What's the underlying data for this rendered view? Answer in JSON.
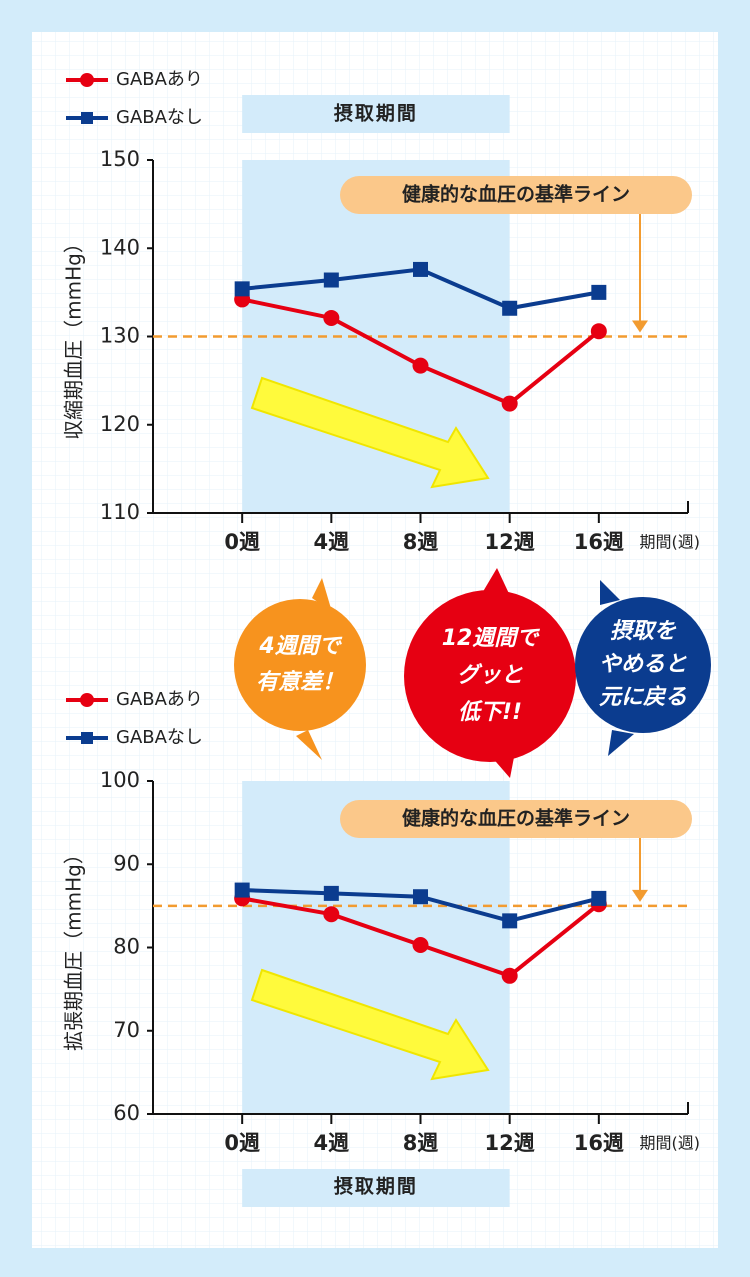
{
  "chart_data": [
    {
      "type": "line",
      "y_label": "収縮期血圧（mmHg）",
      "x_label": "期間(週)",
      "x": [
        0,
        4,
        8,
        12,
        16
      ],
      "xlim": [
        -4,
        20
      ],
      "xticks": [
        {
          "value": 0,
          "label": "0週"
        },
        {
          "value": 4,
          "label": "4週"
        },
        {
          "value": 8,
          "label": "8週"
        },
        {
          "value": 12,
          "label": "12週"
        },
        {
          "value": 16,
          "label": "16週"
        }
      ],
      "ylim": [
        110,
        150
      ],
      "yticks": [
        110,
        120,
        130,
        140,
        150
      ],
      "series": [
        {
          "name": "GABAあり",
          "color": "#e60012",
          "marker": "circle",
          "values": [
            134.2,
            132.1,
            126.7,
            122.4,
            130.6
          ]
        },
        {
          "name": "GABAなし",
          "color": "#0b3c8f",
          "marker": "square",
          "values": [
            135.4,
            136.4,
            137.6,
            133.2,
            135.0
          ]
        }
      ],
      "reference": 130,
      "reference_label": "健康的な血圧の基準ライン",
      "period": [
        0,
        12
      ],
      "period_label": "摂取期間"
    },
    {
      "type": "line",
      "y_label": "拡張期血圧（mmHg）",
      "x_label": "期間(週)",
      "x": [
        0,
        4,
        8,
        12,
        16
      ],
      "xlim": [
        -4,
        20
      ],
      "xticks": [
        {
          "value": 0,
          "label": "0週"
        },
        {
          "value": 4,
          "label": "4週"
        },
        {
          "value": 8,
          "label": "8週"
        },
        {
          "value": 12,
          "label": "12週"
        },
        {
          "value": 16,
          "label": "16週"
        }
      ],
      "ylim": [
        60,
        100
      ],
      "yticks": [
        60,
        70,
        80,
        90,
        100
      ],
      "series": [
        {
          "name": "GABAあり",
          "color": "#e60012",
          "marker": "circle",
          "values": [
            85.9,
            84.0,
            80.3,
            76.6,
            85.2
          ]
        },
        {
          "name": "GABAなし",
          "color": "#0b3c8f",
          "marker": "square",
          "values": [
            86.9,
            86.5,
            86.1,
            83.2,
            85.9
          ]
        }
      ],
      "reference": 85,
      "reference_label": "健康的な血圧の基準ライン",
      "period": [
        0,
        12
      ],
      "period_label": "摂取期間"
    }
  ],
  "callouts": [
    {
      "lines": [
        "4週間で",
        "有意差！"
      ]
    },
    {
      "lines": [
        "12週間で",
        "グッと",
        "低下!!"
      ]
    },
    {
      "lines": [
        "摂取を",
        "やめると",
        "元に戻る"
      ]
    }
  ]
}
